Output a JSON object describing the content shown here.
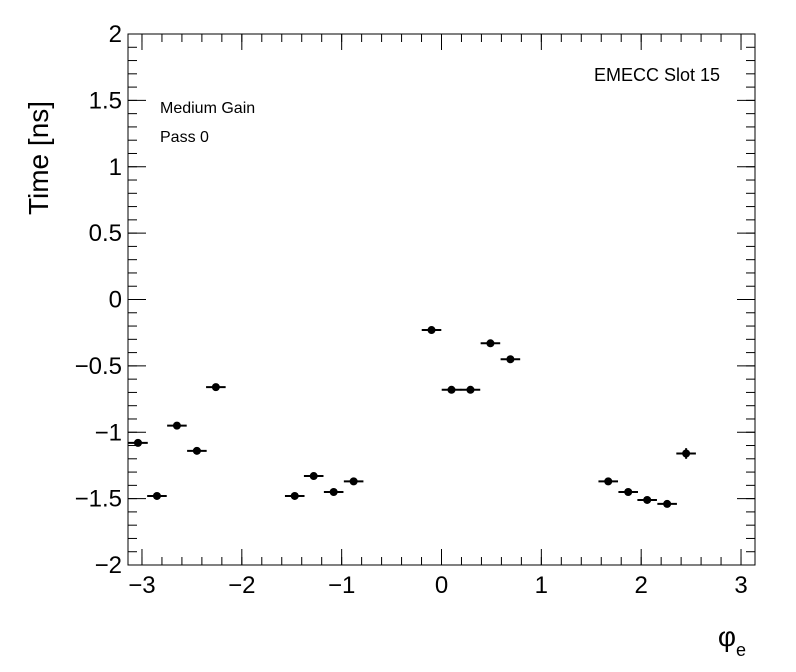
{
  "chart_data": {
    "type": "scatter",
    "xlabel": {
      "symbol": "φ",
      "subscript": "e"
    },
    "ylabel": "Time [ns]",
    "xlim": [
      -3.14,
      3.14
    ],
    "ylim": [
      -2,
      2
    ],
    "x_ticks": [
      -3,
      -2,
      -1,
      0,
      1,
      2,
      3
    ],
    "x_tick_labels": [
      "−3",
      "−2",
      "−1",
      "0",
      "1",
      "2",
      "3"
    ],
    "y_ticks": [
      -2,
      -1.5,
      -1,
      -0.5,
      0,
      0.5,
      1,
      1.5,
      2
    ],
    "y_tick_labels": [
      "−2",
      "−1.5",
      "−1",
      "−0.5",
      "0",
      "0.5",
      "1",
      "1.5",
      "2"
    ],
    "x_error_halfwidth": 0.098,
    "annotations": {
      "top_right": "EMECC Slot 15",
      "line1": "Medium Gain",
      "line2": "Pass 0"
    },
    "grid": false,
    "marker_color": "#000000",
    "points": [
      {
        "x": -3.04,
        "y": -1.08,
        "yerr": 0.02
      },
      {
        "x": -2.85,
        "y": -1.48,
        "yerr": 0.02
      },
      {
        "x": -2.65,
        "y": -0.95,
        "yerr": 0.02
      },
      {
        "x": -2.45,
        "y": -1.14,
        "yerr": 0.02
      },
      {
        "x": -2.26,
        "y": -0.66,
        "yerr": 0.02
      },
      {
        "x": -1.47,
        "y": -1.48,
        "yerr": 0.02
      },
      {
        "x": -1.28,
        "y": -1.33,
        "yerr": 0.02
      },
      {
        "x": -1.08,
        "y": -1.45,
        "yerr": 0.02
      },
      {
        "x": -0.88,
        "y": -1.37,
        "yerr": 0.02
      },
      {
        "x": -0.1,
        "y": -0.23,
        "yerr": 0.02
      },
      {
        "x": 0.1,
        "y": -0.68,
        "yerr": 0.02
      },
      {
        "x": 0.29,
        "y": -0.68,
        "yerr": 0.02
      },
      {
        "x": 0.49,
        "y": -0.33,
        "yerr": 0.02
      },
      {
        "x": 0.69,
        "y": -0.45,
        "yerr": 0.02
      },
      {
        "x": 1.67,
        "y": -1.37,
        "yerr": 0.02
      },
      {
        "x": 1.87,
        "y": -1.45,
        "yerr": 0.02
      },
      {
        "x": 2.06,
        "y": -1.51,
        "yerr": 0.02
      },
      {
        "x": 2.26,
        "y": -1.54,
        "yerr": 0.02
      },
      {
        "x": 2.45,
        "y": -1.16,
        "yerr": 0.04
      }
    ]
  }
}
